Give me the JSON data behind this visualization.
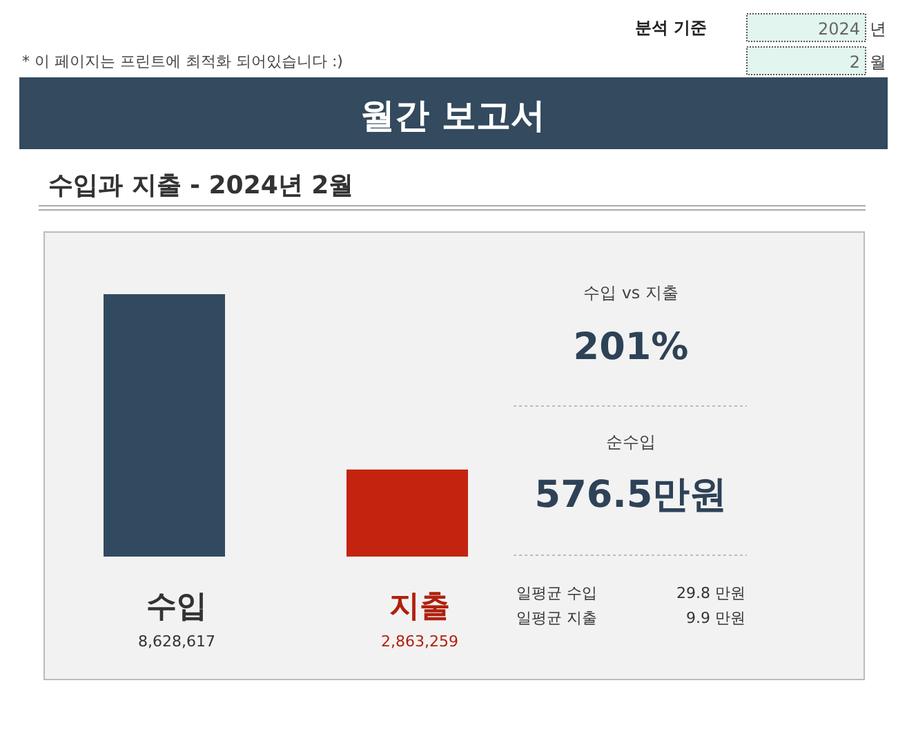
{
  "chart_data": [
    {
      "type": "bar",
      "title": "월간 보고서",
      "subtitle": "수입과 지출 - 2024년 2월",
      "annotations": [
        "분석 기준",
        "2024",
        "년",
        "2",
        "월",
        "* 이 페이지는 프린트에 최적화 되어있습니다 :)"
      ],
      "categories": [
        "수입",
        "지출"
      ],
      "values": [
        8628617,
        2863259
      ],
      "colors": [
        "#324a5f",
        "#c4240f"
      ],
      "value_labels": [
        "8,628,617",
        "2,863,259"
      ]
    },
    {
      "type": "other",
      "title": "수입 vs 지출",
      "annotations": [
        "201%",
        "순수입",
        "576.5만원",
        "일평균 수입",
        "29.8 만원",
        "일평균 지출",
        "9.9 만원"
      ]
    }
  ]
}
